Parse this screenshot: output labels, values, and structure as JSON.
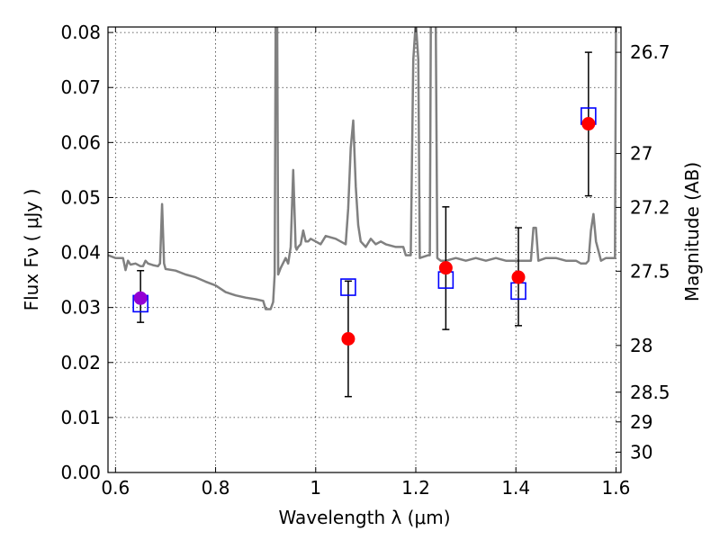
{
  "chart_data": {
    "type": "scatter",
    "xlabel": "Wavelength  λ (μm)",
    "ylabel_left": "Flux  Fν  ( μJy )",
    "ylabel_right": "Magnitude (AB)",
    "xlim": [
      0.585,
      1.61
    ],
    "ylim": [
      0.0,
      0.081
    ],
    "grid": true,
    "x_ticks": [
      0.6,
      0.8,
      1.0,
      1.2,
      1.4,
      1.6
    ],
    "x_tick_labels": [
      "0.6",
      "0.8",
      "1",
      "1.2",
      "1.4",
      "1.6"
    ],
    "y_ticks": [
      0.0,
      0.01,
      0.02,
      0.03,
      0.04,
      0.05,
      0.06,
      0.07,
      0.08
    ],
    "y_tick_labels": [
      "0.00",
      "0.01",
      "0.02",
      "0.03",
      "0.04",
      "0.05",
      "0.06",
      "0.07",
      "0.08"
    ],
    "right_ticks": [
      {
        "label": "26.7",
        "flux": 0.0764
      },
      {
        "label": "27",
        "flux": 0.058
      },
      {
        "label": "27.2",
        "flux": 0.0482
      },
      {
        "label": "27.5",
        "flux": 0.0366
      },
      {
        "label": "28",
        "flux": 0.0231
      },
      {
        "label": "28.5",
        "flux": 0.0146
      },
      {
        "label": "29",
        "flux": 0.0092
      },
      {
        "label": "30",
        "flux": 0.0037
      }
    ],
    "series": [
      {
        "kind": "line",
        "color": "#808080",
        "points": [
          [
            0.585,
            0.0395
          ],
          [
            0.6,
            0.039
          ],
          [
            0.615,
            0.039
          ],
          [
            0.62,
            0.0368
          ],
          [
            0.625,
            0.0385
          ],
          [
            0.63,
            0.0378
          ],
          [
            0.64,
            0.038
          ],
          [
            0.65,
            0.0375
          ],
          [
            0.655,
            0.0375
          ],
          [
            0.66,
            0.0385
          ],
          [
            0.665,
            0.038
          ],
          [
            0.675,
            0.0377
          ],
          [
            0.685,
            0.0375
          ],
          [
            0.689,
            0.038
          ],
          [
            0.693,
            0.0488
          ],
          [
            0.697,
            0.038
          ],
          [
            0.7,
            0.037
          ],
          [
            0.72,
            0.0367
          ],
          [
            0.74,
            0.036
          ],
          [
            0.76,
            0.0355
          ],
          [
            0.78,
            0.0347
          ],
          [
            0.8,
            0.034
          ],
          [
            0.82,
            0.0328
          ],
          [
            0.84,
            0.0322
          ],
          [
            0.86,
            0.0318
          ],
          [
            0.88,
            0.0315
          ],
          [
            0.895,
            0.0312
          ],
          [
            0.9,
            0.0297
          ],
          [
            0.91,
            0.0297
          ],
          [
            0.915,
            0.031
          ],
          [
            0.918,
            0.036
          ],
          [
            0.92,
            0.082
          ],
          [
            0.923,
            0.082
          ],
          [
            0.925,
            0.036
          ],
          [
            0.93,
            0.0372
          ],
          [
            0.94,
            0.039
          ],
          [
            0.945,
            0.038
          ],
          [
            0.95,
            0.041
          ],
          [
            0.955,
            0.055
          ],
          [
            0.96,
            0.041
          ],
          [
            0.962,
            0.0405
          ],
          [
            0.965,
            0.041
          ],
          [
            0.97,
            0.0415
          ],
          [
            0.975,
            0.044
          ],
          [
            0.98,
            0.042
          ],
          [
            0.985,
            0.042
          ],
          [
            0.99,
            0.0425
          ],
          [
            1.0,
            0.042
          ],
          [
            1.01,
            0.0415
          ],
          [
            1.02,
            0.043
          ],
          [
            1.04,
            0.0425
          ],
          [
            1.06,
            0.0415
          ],
          [
            1.065,
            0.048
          ],
          [
            1.07,
            0.059
          ],
          [
            1.075,
            0.064
          ],
          [
            1.08,
            0.052
          ],
          [
            1.085,
            0.045
          ],
          [
            1.09,
            0.042
          ],
          [
            1.1,
            0.041
          ],
          [
            1.11,
            0.0425
          ],
          [
            1.12,
            0.0415
          ],
          [
            1.13,
            0.042
          ],
          [
            1.14,
            0.0415
          ],
          [
            1.16,
            0.041
          ],
          [
            1.175,
            0.041
          ],
          [
            1.18,
            0.0395
          ],
          [
            1.19,
            0.0395
          ],
          [
            1.195,
            0.075
          ],
          [
            1.2,
            0.082
          ],
          [
            1.205,
            0.075
          ],
          [
            1.208,
            0.039
          ],
          [
            1.225,
            0.0395
          ],
          [
            1.228,
            0.0395
          ],
          [
            1.23,
            0.082
          ],
          [
            1.24,
            0.082
          ],
          [
            1.243,
            0.039
          ],
          [
            1.25,
            0.0385
          ],
          [
            1.26,
            0.0385
          ],
          [
            1.28,
            0.039
          ],
          [
            1.3,
            0.0385
          ],
          [
            1.32,
            0.039
          ],
          [
            1.34,
            0.0385
          ],
          [
            1.36,
            0.039
          ],
          [
            1.38,
            0.0385
          ],
          [
            1.4,
            0.0385
          ],
          [
            1.42,
            0.0385
          ],
          [
            1.43,
            0.0385
          ],
          [
            1.435,
            0.0445
          ],
          [
            1.44,
            0.0445
          ],
          [
            1.445,
            0.0385
          ],
          [
            1.46,
            0.039
          ],
          [
            1.48,
            0.039
          ],
          [
            1.5,
            0.0385
          ],
          [
            1.52,
            0.0385
          ],
          [
            1.53,
            0.038
          ],
          [
            1.54,
            0.038
          ],
          [
            1.545,
            0.0385
          ],
          [
            1.55,
            0.044
          ],
          [
            1.555,
            0.047
          ],
          [
            1.56,
            0.042
          ],
          [
            1.57,
            0.0385
          ],
          [
            1.58,
            0.039
          ],
          [
            1.595,
            0.039
          ],
          [
            1.598,
            0.039
          ],
          [
            1.6,
            0.081
          ],
          [
            1.61,
            0.081
          ]
        ]
      },
      {
        "kind": "squares",
        "color": "#0000ff",
        "points": [
          [
            0.65,
            0.0307
          ],
          [
            1.065,
            0.0337
          ],
          [
            1.26,
            0.035
          ],
          [
            1.405,
            0.033
          ],
          [
            1.545,
            0.0648
          ]
        ]
      },
      {
        "kind": "circles",
        "color": "#ff0000",
        "points": [
          [
            1.065,
            0.0243,
            0.0138,
            0.0348
          ],
          [
            1.26,
            0.0372,
            0.026,
            0.0483
          ],
          [
            1.405,
            0.0355,
            0.0267,
            0.0445
          ],
          [
            1.545,
            0.0634,
            0.0503,
            0.0764
          ]
        ]
      },
      {
        "kind": "circles",
        "color": "#9400d3",
        "points": [
          [
            0.65,
            0.0317,
            0.0273,
            0.0367
          ]
        ]
      }
    ]
  }
}
